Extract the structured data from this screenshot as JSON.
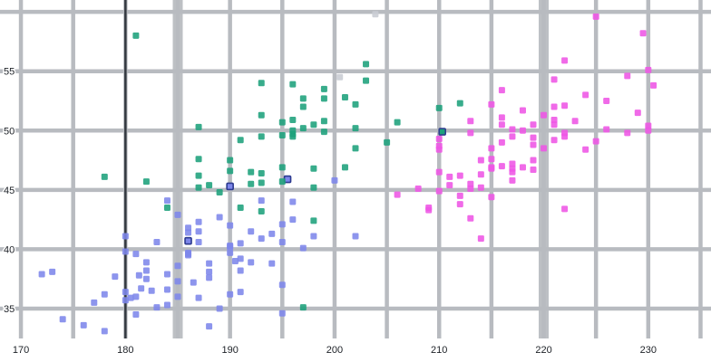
{
  "chart_data": {
    "type": "scatter",
    "title": "",
    "xlabel": "",
    "ylabel": "",
    "x_ticks": [
      170,
      180,
      190,
      200,
      210,
      220,
      230
    ],
    "y_ticks": [
      35,
      40,
      45,
      50,
      55
    ],
    "xlim": [
      168,
      236
    ],
    "ylim": [
      30.5,
      61
    ],
    "grid": {
      "x_step": 5,
      "y_step": 5,
      "color": "#b8bbc0",
      "width": 4.5,
      "thick_x": [
        185,
        220
      ],
      "thick_width": 11,
      "thick_color": "#bdc0c4",
      "dark_line_x": 180,
      "dark_line_color": "#33383f",
      "dark_line_width": 2.5
    },
    "marker": {
      "shape": "square",
      "size": 7,
      "opacity": 0.88
    },
    "series": [
      {
        "name": "blue",
        "color": "#7d86ea",
        "ring_color": "#2c3a8f",
        "points": [
          [
            181.3,
            37.8
          ],
          [
            186,
            39.5
          ],
          [
            190,
            40.3
          ],
          [
            181.5,
            36.7
          ],
          [
            182,
            38.9
          ],
          [
            191,
            39.2
          ],
          [
            198,
            41.1
          ],
          [
            185,
            38.6
          ],
          [
            195,
            34.6
          ],
          [
            184,
            36.6
          ],
          [
            180.5,
            35.9
          ],
          [
            182,
            38.2
          ],
          [
            191,
            40.5
          ],
          [
            186.5,
            37.2
          ],
          [
            180,
            39.8
          ],
          [
            182.5,
            36.5
          ],
          [
            187,
            40.6
          ],
          [
            184,
            37.9
          ],
          [
            186,
            39.7
          ],
          [
            180,
            36.4
          ],
          [
            188,
            38.1
          ],
          [
            190,
            42.0
          ],
          [
            187,
            41.5
          ],
          [
            183,
            35.1
          ],
          [
            187,
            42.3
          ],
          [
            172,
            37.9
          ],
          [
            180,
            35.7
          ],
          [
            178,
            36.2
          ],
          [
            178,
            33.1
          ],
          [
            188,
            38.8
          ],
          [
            184,
            35.3
          ],
          [
            195,
            40.6
          ],
          [
            196,
            42.5
          ],
          [
            190.5,
            39.0
          ],
          [
            193,
            40.9
          ],
          [
            181,
            36.0
          ],
          [
            184,
            44.1
          ],
          [
            195,
            37.0
          ],
          [
            186,
            39.6
          ],
          [
            180,
            41.1
          ],
          [
            182,
            37.5
          ],
          [
            191,
            36.4
          ],
          [
            186,
            41.8
          ],
          [
            188,
            33.5
          ],
          [
            190,
            39.7
          ],
          [
            200,
            45.8
          ],
          [
            187,
            35.9
          ],
          [
            191,
            38.2
          ],
          [
            186,
            41.4
          ],
          [
            193,
            44.1
          ],
          [
            181,
            39.6
          ],
          [
            194,
            41.3
          ],
          [
            185,
            36.0
          ],
          [
            195,
            42.1
          ],
          [
            181,
            34.5
          ],
          [
            192,
            38.9
          ],
          [
            190,
            36.2
          ],
          [
            174,
            34.1
          ],
          [
            189,
            42.7
          ],
          [
            185,
            37.3
          ],
          [
            202,
            41.1
          ],
          [
            190,
            40.2
          ],
          [
            176,
            33.6
          ],
          [
            197,
            40.1
          ],
          [
            183,
            40.6
          ],
          [
            192,
            41.5
          ],
          [
            188,
            37.6
          ],
          [
            194,
            38.8
          ],
          [
            185,
            42.9
          ],
          [
            179,
            37.7
          ],
          [
            189,
            35.0
          ],
          [
            196,
            44.0
          ],
          [
            173,
            38.1
          ],
          [
            177,
            35.5
          ]
        ],
        "ringed": [
          [
            186,
            40.7
          ],
          [
            190,
            45.3
          ],
          [
            195.5,
            45.9
          ]
        ]
      },
      {
        "name": "green",
        "color": "#1da17b",
        "ring_color": "#2f3e8e",
        "points": [
          [
            192,
            46.5
          ],
          [
            196,
            50.0
          ],
          [
            193,
            51.3
          ],
          [
            188,
            45.4
          ],
          [
            197,
            52.7
          ],
          [
            198,
            45.2
          ],
          [
            178,
            46.1
          ],
          [
            197,
            52.0
          ],
          [
            195,
            46.9
          ],
          [
            198,
            50.5
          ],
          [
            193,
            49.5
          ],
          [
            187,
            46.2
          ],
          [
            201,
            52.8
          ],
          [
            195,
            45.7
          ],
          [
            181,
            58.0
          ],
          [
            192,
            45.5
          ],
          [
            187,
            50.3
          ],
          [
            196,
            53.9
          ],
          [
            193,
            46.4
          ],
          [
            191,
            49.2
          ],
          [
            199,
            52.7
          ],
          [
            187,
            47.6
          ],
          [
            203,
            55.6
          ],
          [
            191,
            43.5
          ],
          [
            195,
            49.6
          ],
          [
            199,
            50.8
          ],
          [
            202,
            52.2
          ],
          [
            205,
            49.0
          ],
          [
            202,
            50.2
          ],
          [
            193,
            45.6
          ],
          [
            210,
            51.9
          ],
          [
            198,
            46.8
          ],
          [
            182,
            45.7
          ],
          [
            193,
            54.0
          ],
          [
            196,
            49.7
          ],
          [
            201,
            46.9
          ],
          [
            203,
            54.2
          ],
          [
            187,
            45.2
          ],
          [
            197,
            50.2
          ],
          [
            199,
            49.9
          ],
          [
            190,
            47.5
          ],
          [
            196,
            49.5
          ],
          [
            212,
            52.3
          ],
          [
            195,
            50.7
          ],
          [
            198,
            42.4
          ],
          [
            202,
            48.5
          ],
          [
            193,
            43.2
          ],
          [
            196,
            50.9
          ],
          [
            190,
            46.6
          ],
          [
            184,
            43.5
          ],
          [
            189,
            44.8
          ],
          [
            197,
            35.1
          ],
          [
            206,
            50.7
          ],
          [
            199,
            53.5
          ]
        ],
        "ringed": [
          [
            210.3,
            49.9
          ]
        ]
      },
      {
        "name": "magenta",
        "color": "#ee55e5",
        "ring_color": "#8f2c86",
        "points": [
          [
            211,
            46.1
          ],
          [
            230,
            50.0
          ],
          [
            210,
            48.7
          ],
          [
            218,
            50.0
          ],
          [
            215,
            47.6
          ],
          [
            210,
            46.5
          ],
          [
            211,
            45.4
          ],
          [
            219,
            46.7
          ],
          [
            209,
            43.3
          ],
          [
            215,
            46.8
          ],
          [
            214,
            40.9
          ],
          [
            216,
            49.0
          ],
          [
            213,
            45.5
          ],
          [
            210,
            48.4
          ],
          [
            217,
            45.8
          ],
          [
            210,
            49.3
          ],
          [
            221,
            50.5
          ],
          [
            209,
            43.5
          ],
          [
            222,
            49.8
          ],
          [
            218,
            46.9
          ],
          [
            215,
            48.5
          ],
          [
            213,
            45.1
          ],
          [
            217,
            50.1
          ],
          [
            214,
            46.3
          ],
          [
            221,
            54.3
          ],
          [
            213,
            49.8
          ],
          [
            217,
            46.8
          ],
          [
            216,
            53.4
          ],
          [
            230,
            50.4
          ],
          [
            217,
            46.5
          ],
          [
            222,
            52.1
          ],
          [
            214,
            47.5
          ],
          [
            215,
            52.2
          ],
          [
            222,
            49.5
          ],
          [
            212,
            44.5
          ],
          [
            213,
            50.8
          ],
          [
            219,
            49.4
          ],
          [
            215,
            46.9
          ],
          [
            216,
            51.1
          ],
          [
            220,
            48.5
          ],
          [
            222,
            55.9
          ],
          [
            225,
            49.1
          ],
          [
            216,
            47.0
          ],
          [
            221,
            52.0
          ],
          [
            225,
            59.6
          ],
          [
            217,
            49.5
          ],
          [
            213,
            42.6
          ],
          [
            219,
            50.5
          ],
          [
            215,
            44.4
          ],
          [
            220,
            51.3
          ],
          [
            221,
            49.2
          ],
          [
            212,
            46.2
          ],
          [
            219,
            48.8
          ],
          [
            217,
            47.2
          ],
          [
            229,
            51.5
          ],
          [
            230,
            55.1
          ],
          [
            224,
            48.4
          ],
          [
            212,
            43.8
          ],
          [
            221,
            50.9
          ],
          [
            228,
            54.6
          ],
          [
            219,
            47.5
          ],
          [
            226,
            52.5
          ],
          [
            216,
            50.5
          ],
          [
            228,
            49.8
          ],
          [
            214,
            45.2
          ],
          [
            218,
            51.7
          ],
          [
            223,
            50.8
          ],
          [
            210,
            44.9
          ],
          [
            224,
            53.0
          ],
          [
            206,
            44.6
          ],
          [
            208,
            45.1
          ],
          [
            229.5,
            58.2
          ],
          [
            222,
            43.4
          ],
          [
            226,
            50.1
          ],
          [
            230.5,
            53.8
          ]
        ],
        "ringed": []
      },
      {
        "name": "gray",
        "color": "#c8ccd3",
        "ring_color": "#9aa0a8",
        "points": [
          [
            200.5,
            54.5
          ],
          [
            203.9,
            59.8
          ]
        ],
        "ringed": []
      }
    ]
  }
}
